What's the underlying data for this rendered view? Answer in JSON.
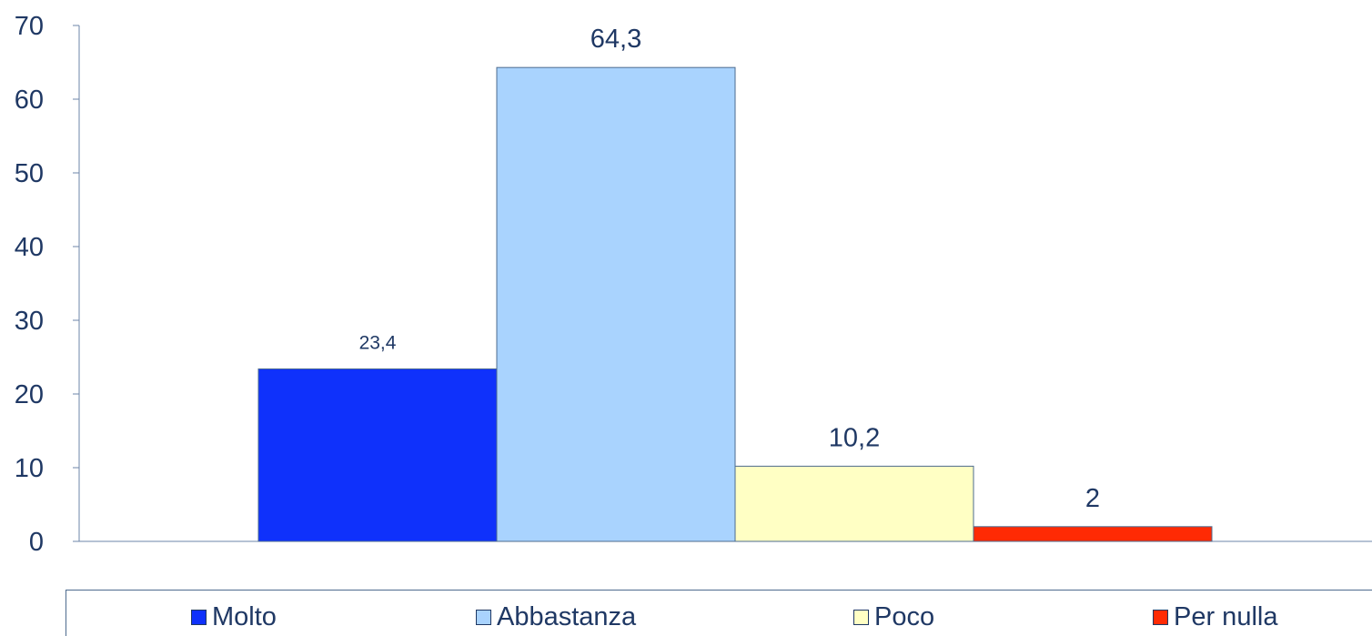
{
  "chart_data": {
    "type": "bar",
    "categories": [
      "Molto",
      "Abbastanza",
      "Poco",
      "Per nulla"
    ],
    "values": [
      23.4,
      64.3,
      10.2,
      2
    ],
    "value_labels": [
      "23,4",
      "64,3",
      "10,2",
      "2"
    ],
    "colors": [
      "#0f31fb",
      "#a9d3fe",
      "#ffffc4",
      "#ff2a04"
    ],
    "title": "",
    "xlabel": "",
    "ylabel": "",
    "ylim": [
      0,
      70
    ],
    "y_ticks": [
      0,
      10,
      20,
      30,
      40,
      50,
      60,
      70
    ],
    "grid": false,
    "legend": "bottom",
    "legend_labels": [
      "Molto",
      "Abbastanza",
      "Poco",
      "Per nulla"
    ]
  }
}
